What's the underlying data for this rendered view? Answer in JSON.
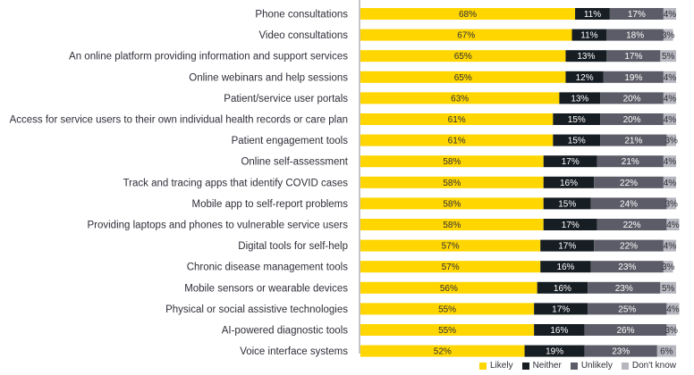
{
  "chart_data": {
    "type": "bar",
    "orientation": "horizontal-stacked",
    "title": "",
    "xlabel": "",
    "ylabel": "",
    "xlim": [
      0,
      100
    ],
    "value_suffix": "%",
    "categories": [
      "Phone consultations",
      "Video consultations",
      "An online platform providing information and support services",
      "Online webinars and help sessions",
      "Patient/service user portals",
      "Access for service users to their own individual health records or care plan",
      "Patient engagement tools",
      "Online self-assessment",
      "Track and tracing apps that identify COVID cases",
      "Mobile app to self-report problems",
      "Providing laptops and phones to vulnerable service users",
      "Digital tools for self-help",
      "Chronic disease management tools",
      "Mobile sensors or wearable devices",
      "Physical or social assistive technologies",
      "AI-powered diagnostic tools",
      "Voice interface systems"
    ],
    "series": [
      {
        "name": "Likely",
        "color": "#ffd600",
        "text_color": "#2e2e38",
        "values": [
          68,
          67,
          65,
          65,
          63,
          61,
          61,
          58,
          58,
          58,
          58,
          57,
          57,
          56,
          55,
          55,
          52
        ]
      },
      {
        "name": "Neither",
        "color": "#161d23",
        "text_color": "#ffffff",
        "values": [
          11,
          11,
          13,
          12,
          13,
          15,
          15,
          17,
          16,
          15,
          17,
          17,
          16,
          16,
          17,
          16,
          19
        ]
      },
      {
        "name": "Unlikely",
        "color": "#5b5c67",
        "text_color": "#ffffff",
        "values": [
          17,
          18,
          17,
          19,
          20,
          20,
          21,
          21,
          22,
          24,
          22,
          22,
          23,
          23,
          25,
          26,
          23
        ]
      },
      {
        "name": "Don't know",
        "color": "#b6b6bf",
        "text_color": "#2e2e38",
        "values": [
          4,
          3,
          5,
          4,
          4,
          4,
          3,
          4,
          4,
          3,
          4,
          4,
          3,
          5,
          4,
          3,
          6
        ]
      }
    ],
    "legend_position": "bottom-right"
  }
}
